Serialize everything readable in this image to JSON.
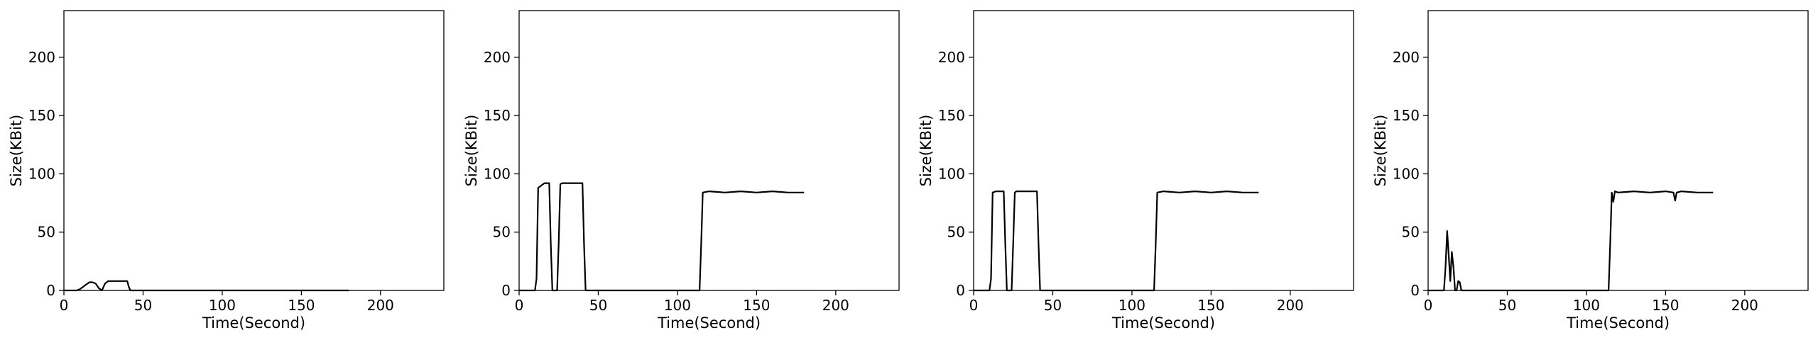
{
  "figure": {
    "colors": {
      "line": "#000000",
      "axes": "#000000",
      "background": "#ffffff"
    }
  },
  "chart_data": [
    {
      "type": "line",
      "xlabel": "Time(Second)",
      "ylabel": "Size(KBit)",
      "xlim": [
        0,
        240
      ],
      "ylim": [
        0,
        240
      ],
      "xticks": [
        0,
        50,
        100,
        150,
        200
      ],
      "yticks": [
        0,
        50,
        100,
        150,
        200
      ],
      "grid": false,
      "series": [
        {
          "x": [
            0,
            2,
            4,
            6,
            8,
            10,
            12,
            14,
            16,
            18,
            20,
            22,
            24,
            26,
            28,
            30,
            32,
            34,
            36,
            38,
            40,
            41,
            42,
            44,
            50,
            60,
            70,
            80,
            90,
            100,
            110,
            120,
            130,
            140,
            150,
            160,
            170,
            180
          ],
          "y": [
            0,
            0,
            0,
            0,
            0,
            1,
            3,
            5,
            7,
            7,
            6,
            2,
            0,
            6,
            8,
            8,
            8,
            8,
            8,
            8,
            8,
            3,
            0,
            0,
            0,
            0,
            0,
            0,
            0,
            0,
            0,
            0,
            0,
            0,
            0,
            0,
            0,
            0
          ]
        }
      ]
    },
    {
      "type": "line",
      "xlabel": "Time(Second)",
      "ylabel": "Size(KBit)",
      "xlim": [
        0,
        240
      ],
      "ylim": [
        0,
        240
      ],
      "xticks": [
        0,
        50,
        100,
        150,
        200
      ],
      "yticks": [
        0,
        50,
        100,
        150,
        200
      ],
      "grid": false,
      "series": [
        {
          "x": [
            0,
            5,
            10,
            11,
            12,
            14,
            16,
            19,
            20,
            21,
            24,
            25,
            26,
            27,
            30,
            35,
            40,
            41,
            42,
            44,
            60,
            80,
            100,
            114,
            115,
            116,
            120,
            130,
            140,
            150,
            160,
            170,
            180
          ],
          "y": [
            0,
            0,
            0,
            10,
            88,
            90,
            92,
            92,
            40,
            0,
            0,
            40,
            91,
            92,
            92,
            92,
            92,
            40,
            0,
            0,
            0,
            0,
            0,
            0,
            40,
            84,
            85,
            84,
            85,
            84,
            85,
            84,
            84
          ]
        }
      ]
    },
    {
      "type": "line",
      "xlabel": "Time(Second)",
      "ylabel": "Size(KBit)",
      "xlim": [
        0,
        240
      ],
      "ylim": [
        0,
        240
      ],
      "xticks": [
        0,
        50,
        100,
        150,
        200
      ],
      "yticks": [
        0,
        50,
        100,
        150,
        200
      ],
      "grid": false,
      "series": [
        {
          "x": [
            0,
            5,
            10,
            11,
            12,
            14,
            16,
            19,
            20,
            21,
            24,
            25,
            26,
            27,
            30,
            35,
            40,
            41,
            42,
            44,
            60,
            80,
            100,
            114,
            115,
            116,
            120,
            130,
            140,
            150,
            160,
            170,
            180
          ],
          "y": [
            0,
            0,
            0,
            10,
            84,
            85,
            85,
            85,
            40,
            0,
            0,
            40,
            84,
            85,
            85,
            85,
            85,
            40,
            0,
            0,
            0,
            0,
            0,
            0,
            40,
            84,
            85,
            84,
            85,
            84,
            85,
            84,
            84
          ]
        }
      ]
    },
    {
      "type": "line",
      "xlabel": "Time(Second)",
      "ylabel": "Size(KBit)",
      "xlim": [
        0,
        240
      ],
      "ylim": [
        0,
        240
      ],
      "xticks": [
        0,
        50,
        100,
        150,
        200
      ],
      "yticks": [
        0,
        50,
        100,
        150,
        200
      ],
      "grid": false,
      "series": [
        {
          "x": [
            0,
            5,
            10,
            11,
            12,
            13,
            14,
            15,
            16,
            17,
            18,
            19,
            20,
            21,
            22,
            30,
            50,
            70,
            90,
            110,
            114,
            115,
            116,
            117,
            118,
            120,
            130,
            140,
            150,
            155,
            156,
            157,
            160,
            170,
            180
          ],
          "y": [
            0,
            0,
            0,
            20,
            51,
            30,
            8,
            33,
            20,
            0,
            0,
            8,
            7,
            0,
            0,
            0,
            0,
            0,
            0,
            0,
            0,
            40,
            84,
            76,
            85,
            84,
            85,
            84,
            85,
            84,
            77,
            84,
            85,
            84,
            84
          ]
        }
      ]
    }
  ]
}
